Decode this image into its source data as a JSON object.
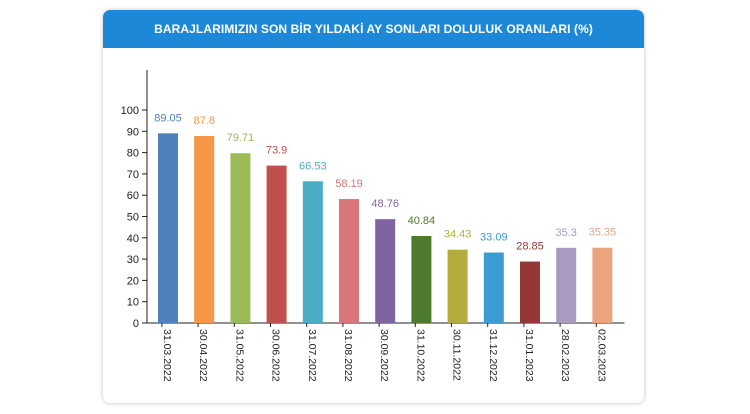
{
  "chart_data": {
    "type": "bar",
    "title": "BARAJLARIMIZIN SON BİR YILDAKİ AY SONLARI DOLULUK ORANLARI (%)",
    "xlabel": "",
    "ylabel": "",
    "ylim": [
      0,
      100
    ],
    "yticks": [
      "0",
      "10",
      "20",
      "30",
      "40",
      "50",
      "60",
      "70",
      "80",
      "90",
      "100"
    ],
    "grid": false,
    "legend": "none",
    "categories": [
      "31.03.2022",
      "30.04.2022",
      "31.05.2022",
      "30.06.2022",
      "31.07.2022",
      "31.08.2022",
      "30.09.2022",
      "31.10.2022",
      "30.11.2022",
      "31.12.2022",
      "31.01.2023",
      "28.02.2023",
      "02.03.2023"
    ],
    "values": [
      89.05,
      87.8,
      79.71,
      73.9,
      66.53,
      58.19,
      48.76,
      40.84,
      34.43,
      33.09,
      28.85,
      35.3,
      35.35
    ],
    "value_labels": [
      "89.05",
      "87.8",
      "79.71",
      "73.9",
      "66.53",
      "58.19",
      "48.76",
      "40.84",
      "34.43",
      "33.09",
      "28.85",
      "35.3",
      "35.35"
    ],
    "colors": [
      "#4f81bd",
      "#f79646",
      "#9bbb59",
      "#c0504d",
      "#4bacc6",
      "#d9767a",
      "#8064a2",
      "#4e7a2e",
      "#b4ad3c",
      "#3d9bd4",
      "#953735",
      "#a99ac2",
      "#eba57e"
    ],
    "label_colors": [
      "#4f81bd",
      "#f79646",
      "#9bbb59",
      "#c0504d",
      "#4bacc6",
      "#d9767a",
      "#8064a2",
      "#4e7a2e",
      "#b4ad3c",
      "#3d9bd4",
      "#953735",
      "#a99ac2",
      "#eba57e"
    ]
  },
  "header": {
    "accent_color": "#1e88d8"
  }
}
